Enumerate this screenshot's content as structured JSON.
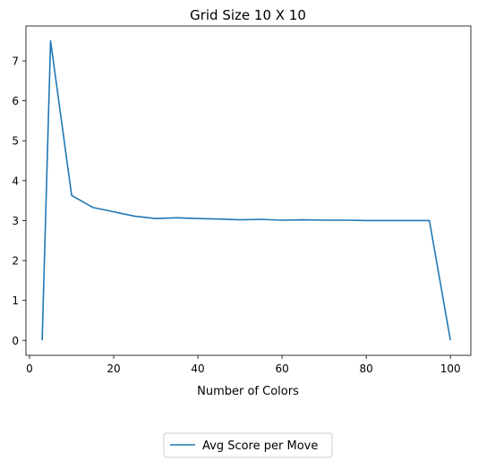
{
  "chart_data": {
    "type": "line",
    "title": "Grid Size 10 X 10",
    "xlabel": "Number of Colors",
    "ylabel": "",
    "xlim": [
      -0.85,
      104.85
    ],
    "ylim": [
      -0.375,
      7.875
    ],
    "xticks": [
      0,
      20,
      40,
      60,
      80,
      100
    ],
    "yticks": [
      0,
      1,
      2,
      3,
      4,
      5,
      6,
      7
    ],
    "grid": false,
    "legend": "bottom-center",
    "series": [
      {
        "name": "Avg Score per Move",
        "color": "#1f77b4",
        "x": [
          3,
          5,
          10,
          15,
          20,
          25,
          30,
          35,
          40,
          45,
          50,
          55,
          60,
          65,
          70,
          75,
          80,
          85,
          90,
          95,
          100
        ],
        "y": [
          0,
          7.5,
          3.63,
          3.33,
          3.22,
          3.11,
          3.05,
          3.07,
          3.05,
          3.04,
          3.02,
          3.03,
          3.01,
          3.02,
          3.01,
          3.01,
          3.0,
          3.0,
          3.0,
          3.0,
          0
        ]
      }
    ]
  }
}
